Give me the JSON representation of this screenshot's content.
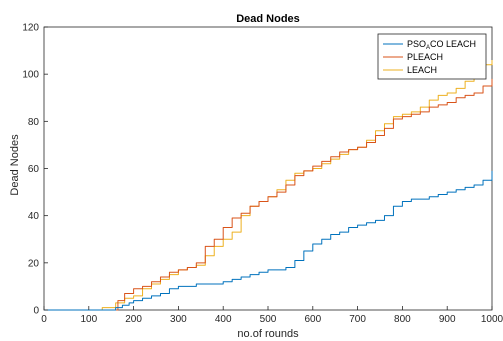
{
  "chart_data": {
    "type": "line",
    "title": "Dead Nodes",
    "xlabel": "no.of rounds",
    "ylabel": "Dead Nodes",
    "xlim": [
      0,
      1000
    ],
    "ylim": [
      0,
      120
    ],
    "xticks": [
      0,
      100,
      200,
      300,
      400,
      500,
      600,
      700,
      800,
      900,
      1000
    ],
    "yticks": [
      0,
      20,
      40,
      60,
      80,
      100,
      120
    ],
    "grid": false,
    "legend_position": "top-right",
    "series": [
      {
        "name": "PSO_ACO LEACH",
        "name_parts": {
          "base": "PSO",
          "sub": "A",
          "rest": "CO LEACH"
        },
        "color": "#0072BD",
        "x": [
          0,
          140,
          160,
          175,
          190,
          200,
          220,
          240,
          260,
          280,
          300,
          320,
          340,
          360,
          380,
          400,
          420,
          440,
          460,
          480,
          500,
          520,
          540,
          560,
          580,
          600,
          620,
          640,
          660,
          680,
          700,
          720,
          740,
          760,
          780,
          800,
          820,
          840,
          860,
          880,
          900,
          920,
          940,
          960,
          980,
          1000
        ],
        "y": [
          0,
          0,
          1,
          2,
          3,
          4,
          5,
          6,
          7,
          9,
          10,
          10,
          11,
          11,
          11,
          12,
          13,
          14,
          15,
          16,
          17,
          17,
          18,
          21,
          25,
          28,
          30,
          32,
          33,
          35,
          36,
          37,
          38,
          40,
          44,
          46,
          47,
          47,
          48,
          49,
          50,
          51,
          52,
          53,
          55,
          59
        ]
      },
      {
        "name": "PLEACH",
        "color": "#D95319",
        "x": [
          0,
          150,
          165,
          180,
          200,
          220,
          240,
          260,
          280,
          300,
          320,
          340,
          360,
          380,
          400,
          420,
          440,
          460,
          480,
          500,
          520,
          540,
          560,
          580,
          600,
          620,
          640,
          660,
          680,
          700,
          720,
          740,
          760,
          780,
          800,
          820,
          840,
          860,
          880,
          900,
          920,
          940,
          960,
          980,
          1000
        ],
        "y": [
          0,
          0,
          4,
          7,
          9,
          10,
          12,
          14,
          16,
          17,
          18,
          20,
          27,
          30,
          35,
          39,
          41,
          44,
          46,
          48,
          50,
          53,
          57,
          59,
          61,
          63,
          65,
          67,
          68,
          69,
          71,
          74,
          77,
          81,
          82,
          83,
          84,
          86,
          87,
          88,
          90,
          91,
          92,
          95,
          98
        ]
      },
      {
        "name": "LEACH",
        "color": "#EDB120",
        "x": [
          0,
          120,
          130,
          160,
          180,
          200,
          220,
          240,
          260,
          280,
          300,
          320,
          340,
          360,
          380,
          400,
          420,
          440,
          460,
          480,
          500,
          520,
          540,
          560,
          580,
          600,
          620,
          640,
          660,
          680,
          700,
          720,
          740,
          760,
          780,
          800,
          820,
          840,
          860,
          880,
          900,
          920,
          940,
          960,
          980,
          1000
        ],
        "y": [
          0,
          0,
          1,
          3,
          5,
          6,
          9,
          11,
          13,
          15,
          17,
          18,
          19,
          23,
          27,
          30,
          33,
          40,
          44,
          46,
          48,
          51,
          55,
          58,
          59,
          60,
          62,
          64,
          66,
          68,
          69,
          72,
          76,
          79,
          82,
          83,
          84,
          86,
          89,
          91,
          92,
          94,
          97,
          101,
          104,
          106
        ]
      }
    ]
  }
}
